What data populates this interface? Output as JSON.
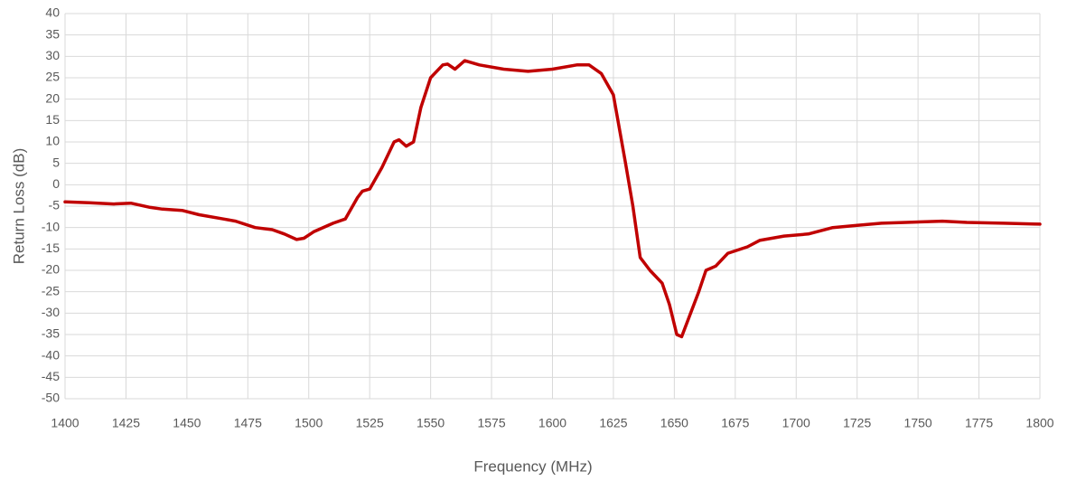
{
  "chart_data": {
    "type": "line",
    "x_label": "Frequency (MHz)",
    "y_label": "Return Loss (dB)",
    "x": [
      1400,
      1410,
      1420,
      1427,
      1435,
      1440,
      1448,
      1455,
      1465,
      1470,
      1478,
      1485,
      1490,
      1495,
      1498,
      1502,
      1510,
      1515,
      1520,
      1522,
      1525,
      1530,
      1535,
      1537,
      1540,
      1543,
      1546,
      1550,
      1555,
      1557,
      1560,
      1564,
      1570,
      1580,
      1590,
      1600,
      1610,
      1615,
      1620,
      1625,
      1630,
      1633,
      1636,
      1640,
      1645,
      1648,
      1651,
      1653,
      1656,
      1660,
      1663,
      1667,
      1672,
      1680,
      1685,
      1695,
      1705,
      1715,
      1725,
      1735,
      1745,
      1760,
      1770,
      1785,
      1800
    ],
    "series": [
      {
        "name": "Return Loss",
        "color": "#c00000",
        "values": [
          -4,
          -4.2,
          -4.5,
          -4.3,
          -5.3,
          -5.7,
          -6,
          -7,
          -8,
          -8.5,
          -10,
          -10.5,
          -11.5,
          -12.8,
          -12.5,
          -11,
          -9,
          -8,
          -3,
          -1.5,
          -1,
          4,
          10,
          10.5,
          9,
          10,
          18,
          25,
          28,
          28.2,
          27,
          29,
          28,
          27,
          26.5,
          27,
          28,
          28,
          26,
          21,
          5,
          -5,
          -17,
          -20,
          -23,
          -28,
          -35,
          -35.5,
          -31,
          -25,
          -20,
          -19,
          -16,
          -14.5,
          -13,
          -12,
          -11.5,
          -10,
          -9.5,
          -9,
          -8.8,
          -8.5,
          -8.8,
          -9,
          -9.2
        ]
      }
    ],
    "xlim": [
      1400,
      1800
    ],
    "xticks": [
      1400,
      1425,
      1450,
      1475,
      1500,
      1525,
      1550,
      1575,
      1600,
      1625,
      1650,
      1675,
      1700,
      1725,
      1750,
      1775,
      1800
    ],
    "ylim": [
      -50,
      40
    ],
    "yticks": [
      -50,
      -45,
      -40,
      -35,
      -30,
      -25,
      -20,
      -15,
      -10,
      -5,
      0,
      5,
      10,
      15,
      20,
      25,
      30,
      35,
      40
    ],
    "grid": true
  }
}
